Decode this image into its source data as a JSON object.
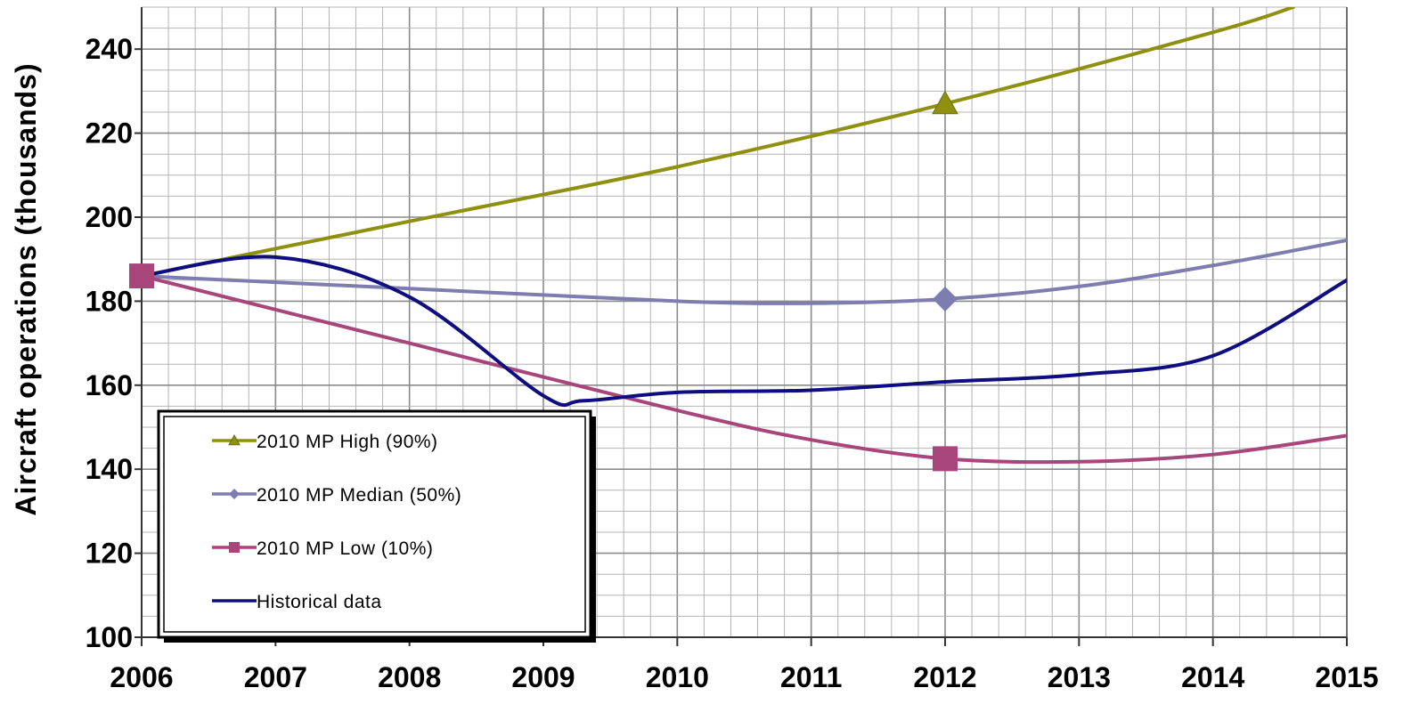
{
  "chart_data": {
    "type": "line",
    "ylabel": "Aircraft  operations  (thousands)",
    "xlabel": "",
    "xlim": [
      2006,
      2015
    ],
    "ylim": [
      100,
      250
    ],
    "x_ticks": [
      "2006",
      "2007",
      "2008",
      "2009",
      "2010",
      "2011",
      "2012",
      "2013",
      "2014",
      "2015"
    ],
    "y_ticks": [
      "100",
      "120",
      "140",
      "160",
      "180",
      "200",
      "220",
      "240"
    ],
    "grid": true,
    "legend_position": "bottom-left",
    "series": [
      {
        "name": "2010 MP High (90%)",
        "color": "#8f8f10",
        "marker": "triangle",
        "x": [
          2006,
          2008,
          2010,
          2012,
          2014,
          2014.6
        ],
        "y": [
          186,
          199,
          212,
          227,
          244,
          250
        ],
        "marker_points": [
          [
            2012,
            227
          ]
        ]
      },
      {
        "name": "2010 MP Median (50%)",
        "color": "#7d7db0",
        "marker": "diamond",
        "x": [
          2006,
          2008,
          2010,
          2011,
          2012,
          2013,
          2014,
          2015
        ],
        "y": [
          186,
          183,
          180,
          179.5,
          180.5,
          183.5,
          188.5,
          194.5
        ],
        "marker_points": [
          [
            2012,
            180.5
          ]
        ]
      },
      {
        "name": "2010 MP Low (10%)",
        "color": "#a8457a",
        "marker": "square",
        "x": [
          2006,
          2008,
          2010,
          2011,
          2012,
          2013,
          2014,
          2015
        ],
        "y": [
          186,
          170,
          154,
          147,
          142.5,
          141.8,
          143.5,
          148
        ],
        "marker_points": [
          [
            2006,
            186
          ],
          [
            2012,
            142.5
          ]
        ]
      },
      {
        "name": "Historical data",
        "color": "#0e0e80",
        "marker": "none",
        "x": [
          2006,
          2007,
          2008,
          2009,
          2009.3,
          2010,
          2011,
          2012,
          2013,
          2014,
          2015
        ],
        "y": [
          186,
          190.5,
          181,
          157.5,
          156.3,
          158.3,
          158.8,
          160.8,
          162.5,
          167,
          185
        ],
        "marker_points": []
      }
    ]
  }
}
